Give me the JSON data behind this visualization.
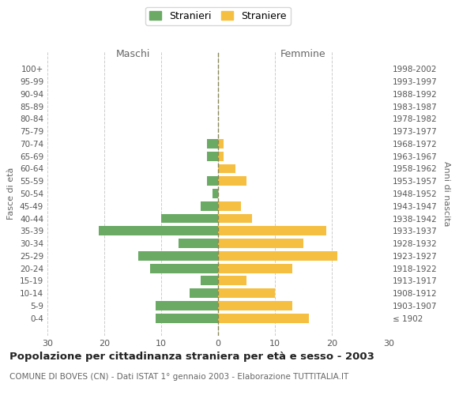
{
  "age_groups": [
    "100+",
    "95-99",
    "90-94",
    "85-89",
    "80-84",
    "75-79",
    "70-74",
    "65-69",
    "60-64",
    "55-59",
    "50-54",
    "45-49",
    "40-44",
    "35-39",
    "30-34",
    "25-29",
    "20-24",
    "15-19",
    "10-14",
    "5-9",
    "0-4"
  ],
  "birth_years": [
    "≤ 1902",
    "1903-1907",
    "1908-1912",
    "1913-1917",
    "1918-1922",
    "1923-1927",
    "1928-1932",
    "1933-1937",
    "1938-1942",
    "1943-1947",
    "1948-1952",
    "1953-1957",
    "1958-1962",
    "1963-1967",
    "1968-1972",
    "1973-1977",
    "1978-1982",
    "1983-1987",
    "1988-1992",
    "1993-1997",
    "1998-2002"
  ],
  "males": [
    0,
    0,
    0,
    0,
    0,
    0,
    2,
    2,
    0,
    2,
    1,
    3,
    10,
    21,
    7,
    14,
    12,
    3,
    5,
    11,
    11
  ],
  "females": [
    0,
    0,
    0,
    0,
    0,
    0,
    1,
    1,
    3,
    5,
    0,
    4,
    6,
    19,
    15,
    21,
    13,
    5,
    10,
    13,
    16
  ],
  "male_color": "#6aaa64",
  "female_color": "#f5bf42",
  "title": "Popolazione per cittadinanza straniera per età e sesso - 2003",
  "subtitle": "COMUNE DI BOVES (CN) - Dati ISTAT 1° gennaio 2003 - Elaborazione TUTTITALIA.IT",
  "xlabel_left": "Maschi",
  "xlabel_right": "Femmine",
  "ylabel_left": "Fasce di età",
  "ylabel_right": "Anni di nascita",
  "legend_stranieri": "Stranieri",
  "legend_straniere": "Straniere",
  "xlim": 30,
  "background_color": "#ffffff",
  "grid_color": "#cccccc"
}
